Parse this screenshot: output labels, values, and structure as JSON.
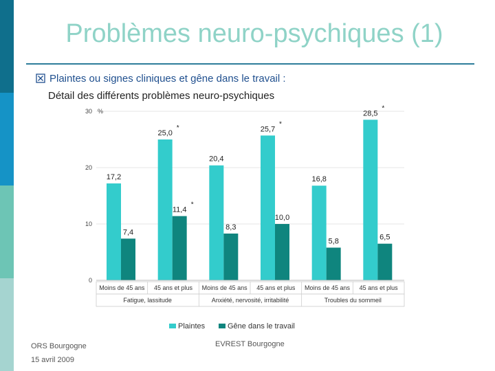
{
  "slide": {
    "title": "Problèmes neuro-psychiques (1)",
    "bullet": "Plaintes ou signes cliniques et gêne dans le travail :",
    "subtitle": "Détail des différents problèmes neuro-psychiques",
    "footer_left_org": "ORS Bourgogne",
    "footer_left_date": "15 avril 2009",
    "footer_center": "EVREST Bourgogne",
    "colors": {
      "accent": "#8fd3c7",
      "sidebar": [
        "#0f6f8c",
        "#1593c6",
        "#6dc5b5",
        "#a5d4d0"
      ]
    }
  },
  "chart_data": {
    "type": "bar",
    "ylabel": "%",
    "ylim": [
      0,
      30
    ],
    "yticks": [
      "0",
      "10",
      "20",
      "30"
    ],
    "categories": [
      "Moins de 45 ans",
      "45 ans et plus",
      "Moins de 45 ans",
      "45 ans et plus",
      "Moins de 45 ans",
      "45 ans et plus"
    ],
    "groups": [
      "Fatigue, lassitude",
      "Anxiété, nervosité, irritabilité",
      "Troubles du sommeil"
    ],
    "series": [
      {
        "name": "Plaintes",
        "color": "#33cccc",
        "values": [
          17.2,
          25.0,
          20.4,
          25.7,
          16.8,
          28.5
        ],
        "labels": [
          "17,2",
          "25,0",
          "20,4",
          "25,7",
          "16,8",
          "28,5"
        ],
        "stars": [
          false,
          true,
          false,
          true,
          false,
          true
        ]
      },
      {
        "name": "Gêne dans le travail",
        "color": "#0f857e",
        "values": [
          7.4,
          11.4,
          8.3,
          10.0,
          5.8,
          6.5
        ],
        "labels": [
          "7,4",
          "11,4",
          "8,3",
          "10,0",
          "5,8",
          "6,5"
        ],
        "stars": [
          false,
          true,
          false,
          false,
          false,
          false
        ]
      }
    ],
    "legend_position": "bottom",
    "star_symbol": "*"
  }
}
